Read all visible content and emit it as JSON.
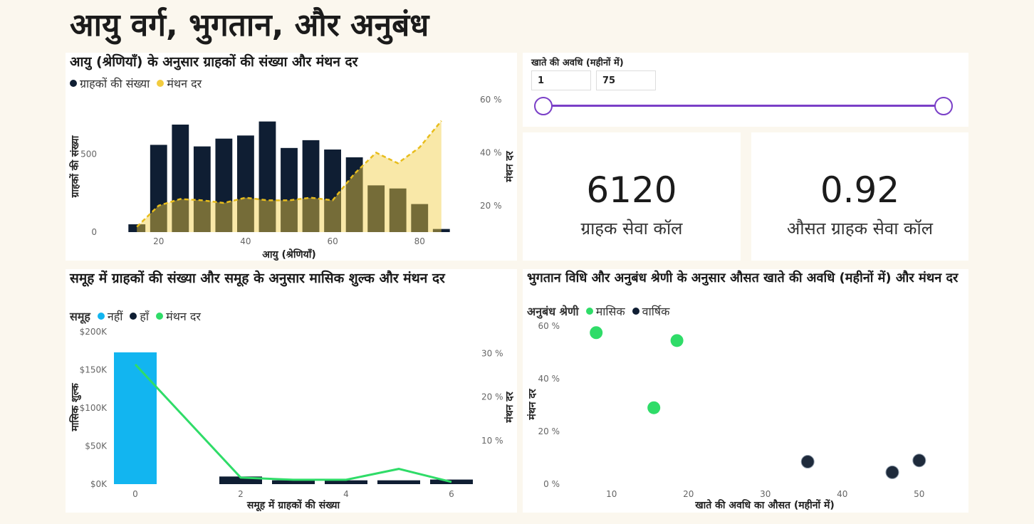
{
  "page_title": "आयु वर्ग, भुगतान, और अनुबंध",
  "slicer": {
    "label": "खाते की अवधि (महीनों में)",
    "min_value": "1",
    "max_value": "75",
    "range_min": 1,
    "range_max": 75,
    "color": "#7a3fc7"
  },
  "kpis": [
    {
      "value": "6120",
      "label": "ग्राहक सेवा कॉल"
    },
    {
      "value": "0.92",
      "label": "औसत ग्राहक सेवा कॉल"
    }
  ],
  "colors": {
    "bar_dark": "#0f1e33",
    "churn_yellow": "#f2cc3f",
    "bar_blue": "#12b5f0",
    "green": "#2fdc68"
  },
  "chart_data": [
    {
      "type": "bar",
      "title": "आयु (श्रेणियाँ) के अनुसार ग्राहकों की संख्या और मंथन दर",
      "legend": [
        "ग्राहकों की संख्या",
        "मंथन दर"
      ],
      "xlabel": "आयु (श्रेणियाँ)",
      "ylabel": "ग्राहकों की संख्या",
      "y2label": "मंथन दर",
      "x_ticks": [
        "20",
        "40",
        "60",
        "80"
      ],
      "y_ticks": [
        "0",
        "500"
      ],
      "y2_ticks": [
        "20 %",
        "40 %",
        "60 %"
      ],
      "xlim": [
        13,
        87
      ],
      "ylim": [
        0,
        850
      ],
      "y2lim": [
        10,
        60
      ],
      "series": [
        {
          "name": "ग्राहकों की संख्या",
          "x": [
            15,
            20,
            25,
            30,
            35,
            40,
            45,
            50,
            55,
            60,
            65,
            70,
            75,
            80,
            85
          ],
          "values": [
            50,
            560,
            690,
            550,
            600,
            620,
            710,
            540,
            590,
            530,
            480,
            300,
            280,
            180,
            20
          ]
        },
        {
          "name": "मंथन दर",
          "x": [
            15,
            20,
            25,
            30,
            35,
            40,
            45,
            50,
            55,
            60,
            65,
            70,
            75,
            80,
            85
          ],
          "values": [
            12,
            20,
            22.5,
            22,
            21,
            23,
            22,
            22,
            23,
            22,
            32,
            40,
            36,
            42,
            52
          ]
        }
      ]
    },
    {
      "type": "bar",
      "title": "समूह में ग्राहकों की संख्या और समूह के अनुसार मासिक शुल्क और मंथन दर",
      "legend_title": "समूह",
      "legend": [
        "नहीं",
        "हाँ",
        "मंथन दर"
      ],
      "xlabel": "समूह में ग्राहकों की संख्या",
      "ylabel": "मासिक शुल्क",
      "y2label": "मंथन दर",
      "x_ticks": [
        "0",
        "2",
        "4",
        "6"
      ],
      "y_ticks": [
        "$0K",
        "$50K",
        "$100K",
        "$150K",
        "$200K"
      ],
      "y2_ticks": [
        "10 %",
        "20 %",
        "30 %"
      ],
      "ylim": [
        0,
        200000
      ],
      "y2lim": [
        0,
        35
      ],
      "categories": [
        0,
        2,
        3,
        4,
        5,
        6
      ],
      "series": [
        {
          "name": "नहीं",
          "values": [
            173000,
            0,
            0,
            0,
            0,
            0
          ]
        },
        {
          "name": "हाँ",
          "values": [
            0,
            10000,
            5000,
            5000,
            5000,
            6000
          ]
        },
        {
          "name": "मंथन दर",
          "values": [
            27.5,
            1.5,
            1,
            1,
            3.5,
            0.5
          ]
        }
      ]
    },
    {
      "type": "scatter",
      "title": "भुगतान विधि और अनुबंध श्रेणी के अनुसार औसत खाते की अवधि (महीनों में) और मंथन दर",
      "legend_title": "अनुबंध श्रेणी",
      "legend": [
        "मासिक",
        "वार्षिक"
      ],
      "xlabel": "खाते की अवधि का औसत (महीनों में)",
      "ylabel": "मंथन दर",
      "x_ticks": [
        "10",
        "20",
        "30",
        "40",
        "50"
      ],
      "y_ticks": [
        "0 %",
        "20 %",
        "40 %",
        "60 %"
      ],
      "xlim": [
        4,
        54
      ],
      "ylim": [
        0,
        60
      ],
      "series": [
        {
          "name": "मासिक",
          "points": [
            [
              8,
              57.5
            ],
            [
              18.5,
              54.5
            ],
            [
              15.5,
              29
            ]
          ]
        },
        {
          "name": "वार्षिक",
          "points": [
            [
              35.5,
              8.5
            ],
            [
              46.5,
              4.5
            ],
            [
              50,
              9
            ]
          ]
        }
      ]
    }
  ]
}
